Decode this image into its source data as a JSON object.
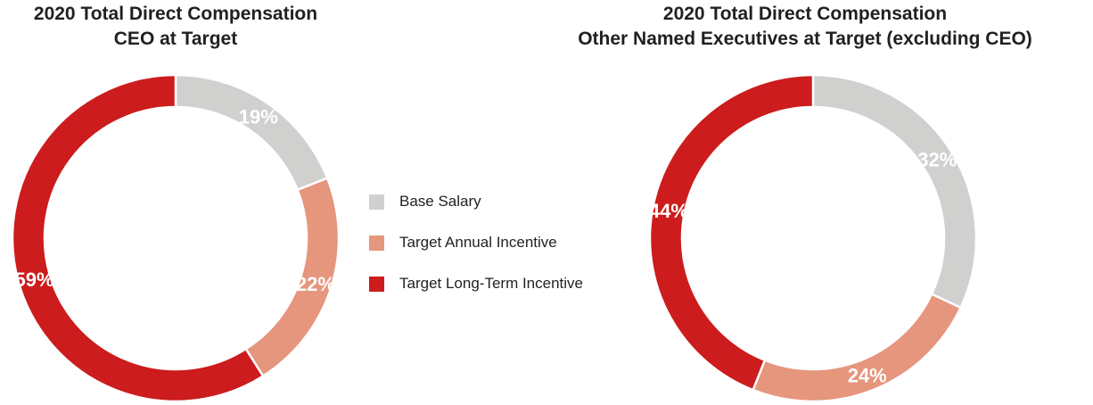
{
  "chart_data": [
    {
      "type": "pie",
      "title_lines": [
        "2020 Total Direct Compensation",
        "CEO at Target"
      ],
      "slices": [
        {
          "name": "Base Salary",
          "value": 19,
          "label": "19%",
          "color": "#d0d0cf"
        },
        {
          "name": "Target Annual Incentive",
          "value": 22,
          "label": "22%",
          "color": "#e5967d"
        },
        {
          "name": "Target Long-Term Incentive",
          "value": 59,
          "label": "59%",
          "color": "#cc1c1d"
        }
      ]
    },
    {
      "type": "pie",
      "title_lines": [
        "2020 Total Direct Compensation",
        "Other Named Executives at Target (excluding CEO)"
      ],
      "slices": [
        {
          "name": "Base Salary",
          "value": 32,
          "label": "32%",
          "color": "#d0d0cf"
        },
        {
          "name": "Target Annual Incentive",
          "value": 24,
          "label": "24%",
          "color": "#e5967d"
        },
        {
          "name": "Target Long-Term Incentive",
          "value": 44,
          "label": "44%",
          "color": "#cc1c1d"
        }
      ]
    }
  ],
  "legend": [
    {
      "label": "Base Salary",
      "color": "#d0d0cf"
    },
    {
      "label": "Target Annual Incentive",
      "color": "#e5967d"
    },
    {
      "label": "Target Long-Term Incentive",
      "color": "#cc1c1d"
    }
  ]
}
